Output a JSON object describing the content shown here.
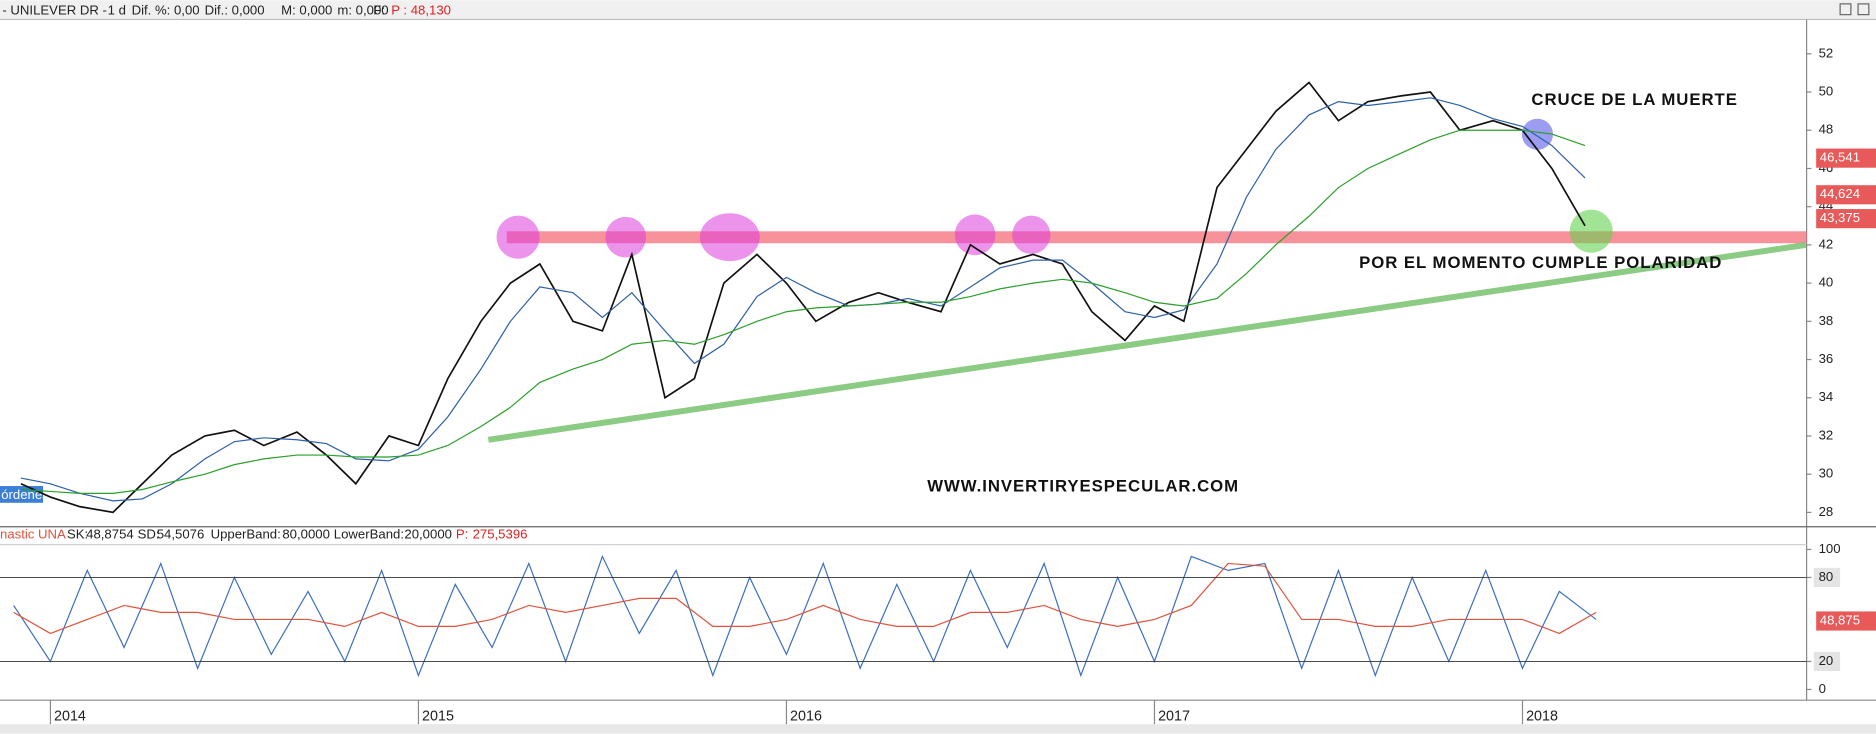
{
  "toolbar": {
    "items": [
      "- UNILEVER DR -",
      "1 d",
      "Dif. %: 0,00",
      "Dif.: 0,000",
      "M: 0,000",
      "m: 0,000",
      "F:",
      "P : 48,130"
    ]
  },
  "chart_data": [
    {
      "type": "line",
      "x": [
        2013.92,
        2014.0,
        2014.08,
        2014.17,
        2014.25,
        2014.33,
        2014.42,
        2014.5,
        2014.58,
        2014.67,
        2014.75,
        2014.83,
        2014.92,
        2015.0,
        2015.08,
        2015.17,
        2015.25,
        2015.33,
        2015.42,
        2015.5,
        2015.58,
        2015.67,
        2015.75,
        2015.83,
        2015.92,
        2016.0,
        2016.08,
        2016.17,
        2016.25,
        2016.33,
        2016.42,
        2016.5,
        2016.58,
        2016.67,
        2016.75,
        2016.83,
        2016.92,
        2017.0,
        2017.08,
        2017.17,
        2017.25,
        2017.33,
        2017.42,
        2017.5,
        2017.58,
        2017.67,
        2017.75,
        2017.83,
        2017.92,
        2018.0,
        2018.08,
        2018.17
      ],
      "series": [
        {
          "color": "#111111",
          "values": [
            29.5,
            28.8,
            28.3,
            28.0,
            29.5,
            31.0,
            32.0,
            32.3,
            31.5,
            32.2,
            31.0,
            29.5,
            32.0,
            31.5,
            35.0,
            38.0,
            40.0,
            41.0,
            38.0,
            37.5,
            41.5,
            34.0,
            35.0,
            40.0,
            41.5,
            40.0,
            38.0,
            39.0,
            39.5,
            39.0,
            38.5,
            42.0,
            41.0,
            41.5,
            41.0,
            38.5,
            37.0,
            38.8,
            38.0,
            45.0,
            47.0,
            49.0,
            50.5,
            48.5,
            49.5,
            49.8,
            50.0,
            48.0,
            48.5,
            48.0,
            46.0,
            43.0
          ]
        },
        {
          "color": "#2c5fa8",
          "values": [
            29.8,
            29.5,
            29.0,
            28.6,
            28.7,
            29.5,
            30.8,
            31.7,
            31.9,
            31.8,
            31.6,
            30.8,
            30.7,
            31.3,
            33.0,
            35.5,
            38.0,
            39.8,
            39.5,
            38.2,
            39.5,
            37.5,
            35.8,
            36.8,
            39.3,
            40.3,
            39.5,
            38.8,
            38.9,
            39.2,
            38.8,
            39.8,
            40.8,
            41.2,
            41.2,
            40.0,
            38.5,
            38.2,
            38.6,
            41.0,
            44.5,
            47.0,
            48.8,
            49.5,
            49.3,
            49.5,
            49.7,
            49.3,
            48.6,
            48.2,
            47.2,
            45.5
          ]
        },
        {
          "color": "#2aa02a",
          "values": [
            29.2,
            29.1,
            29.0,
            29.0,
            29.2,
            29.6,
            30.0,
            30.5,
            30.8,
            31.0,
            31.0,
            30.9,
            30.9,
            31.0,
            31.5,
            32.5,
            33.5,
            34.8,
            35.5,
            36.0,
            36.8,
            37.0,
            36.8,
            37.3,
            38.0,
            38.5,
            38.7,
            38.8,
            38.9,
            39.0,
            39.0,
            39.3,
            39.7,
            40.0,
            40.2,
            40.0,
            39.5,
            39.0,
            38.8,
            39.2,
            40.5,
            42.0,
            43.5,
            45.0,
            46.0,
            46.8,
            47.5,
            48.0,
            48.0,
            48.0,
            47.8,
            47.2
          ]
        }
      ],
      "xlim": [
        2013.863,
        2018.772
      ],
      "ylim": [
        27.25,
        53.8
      ],
      "yticks": [
        28,
        30,
        32,
        34,
        36,
        38,
        40,
        42,
        44,
        46,
        48,
        50,
        52
      ],
      "price_tags": [
        {
          "value": 46.541,
          "label": "46,541"
        },
        {
          "value": 44.624,
          "label": "44,624"
        },
        {
          "value": 43.375,
          "label": "43,375"
        }
      ],
      "resistance": {
        "x": 2015.24,
        "y": 42.4
      },
      "trendline": {
        "x": [
          2015.19,
          2018.77
        ],
        "y": [
          31.8,
          42.0
        ]
      },
      "annotations": [
        "CRUCE DE LA MUERTE",
        "POR EL MOMENTO CUMPLE POLARIDAD",
        "WWW.INVERTIRYESPECULAR.COM"
      ],
      "orders_label": "órdenes"
    },
    {
      "type": "line",
      "title": "nastic UNA",
      "x": [
        2013.9,
        2014.0,
        2014.1,
        2014.2,
        2014.3,
        2014.4,
        2014.5,
        2014.6,
        2014.7,
        2014.8,
        2014.9,
        2015.0,
        2015.1,
        2015.2,
        2015.3,
        2015.4,
        2015.5,
        2015.6,
        2015.7,
        2015.8,
        2015.9,
        2016.0,
        2016.1,
        2016.2,
        2016.3,
        2016.4,
        2016.5,
        2016.6,
        2016.7,
        2016.8,
        2016.9,
        2017.0,
        2017.1,
        2017.2,
        2017.3,
        2017.4,
        2017.5,
        2017.6,
        2017.7,
        2017.8,
        2017.9,
        2018.0,
        2018.1,
        2018.2
      ],
      "series": [
        {
          "name": "SK:",
          "color": "#3a6fbf",
          "current": {
            "value": 48.8754,
            "label": "48,8754"
          },
          "values": [
            60,
            20,
            85,
            30,
            90,
            15,
            80,
            25,
            70,
            20,
            85,
            10,
            75,
            30,
            90,
            20,
            95,
            40,
            85,
            10,
            80,
            25,
            90,
            15,
            75,
            20,
            85,
            30,
            90,
            10,
            80,
            20,
            95,
            85,
            90,
            15,
            85,
            10,
            80,
            20,
            85,
            15,
            70,
            50
          ]
        },
        {
          "name": "SD:",
          "color": "#e0533d",
          "current": {
            "value": 54.5076,
            "label": "54,5076"
          },
          "values": [
            55,
            40,
            50,
            60,
            55,
            55,
            50,
            50,
            50,
            45,
            55,
            45,
            45,
            50,
            60,
            55,
            60,
            65,
            65,
            45,
            45,
            50,
            60,
            50,
            45,
            45,
            55,
            55,
            60,
            50,
            45,
            50,
            60,
            90,
            88,
            50,
            50,
            45,
            45,
            50,
            50,
            50,
            40,
            55
          ]
        }
      ],
      "upper_band": {
        "name": "UpperBand:",
        "value": 80,
        "label": "80,0000"
      },
      "lower_band": {
        "name": "LowerBand:",
        "value": 20,
        "label": "20,0000"
      },
      "p": {
        "name": "P:",
        "value": 275.5396,
        "label": "275,5396"
      },
      "tag": {
        "value": 48.875,
        "label": "48,875"
      },
      "xlim": [
        2013.863,
        2018.772
      ],
      "xticks": [
        2014,
        2015,
        2016,
        2017,
        2018
      ],
      "ylim": [
        -7.7,
        103.4
      ],
      "yticks": [
        0,
        20,
        80,
        100
      ]
    }
  ]
}
